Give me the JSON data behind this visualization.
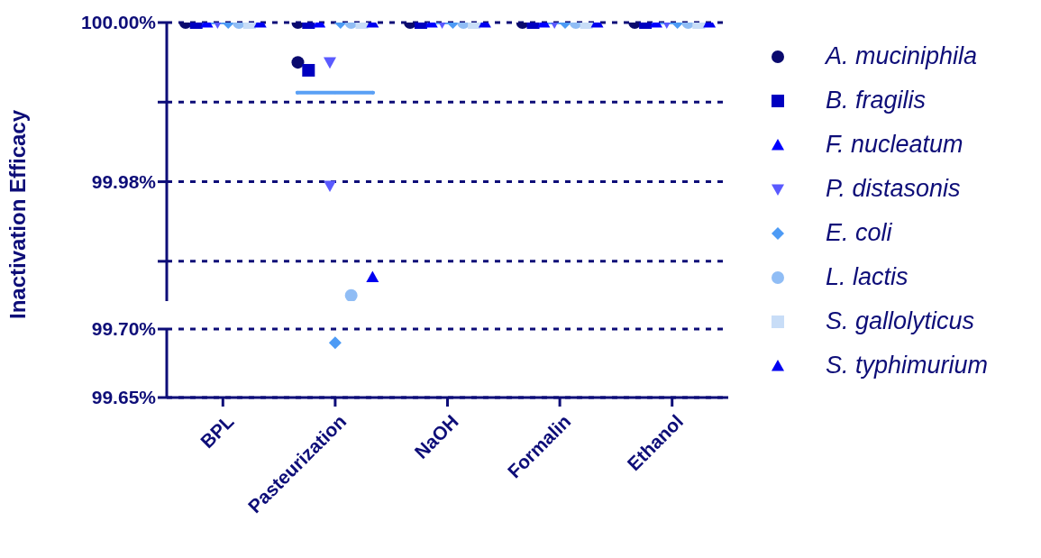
{
  "chart_data": [
    {
      "type": "scatter",
      "ylabel": "Inactivation Efficacy",
      "categories": [
        "BPL",
        "Pasteurization",
        "NaOH",
        "Formalin",
        "Ethanol"
      ],
      "ylim": [
        99.965,
        100
      ],
      "yticks": [
        {
          "value": 100,
          "label": "100.00%"
        },
        {
          "value": 99.99,
          "label": null
        },
        {
          "value": 99.98,
          "label": "99.98%"
        },
        {
          "value": 99.97,
          "label": null
        }
      ],
      "grid": "y",
      "legend": "right",
      "tick_labels": "y",
      "series": [
        {
          "type": "box",
          "color": "#5aa0f5",
          "boxes": [
            {
              "low": 100,
              "q1": 100,
              "median": 100,
              "q3": 100,
              "high": 100
            },
            {
              "low": 99.9912,
              "q1": 99.9912,
              "median": 99.9912,
              "q3": 99.9912,
              "high": 99.9912
            },
            {
              "low": 100,
              "q1": 100,
              "median": 100,
              "q3": 100,
              "high": 100
            },
            {
              "low": 100,
              "q1": 100,
              "median": 100,
              "q3": 100,
              "high": 100
            },
            {
              "low": 100,
              "q1": 100,
              "median": 100,
              "q3": 100,
              "high": 100
            }
          ]
        },
        {
          "name": "A. muciniphila",
          "color": "#0a0a6e",
          "marker": "circle",
          "x": [
            "BPL",
            "Pasteurization",
            "Pasteurization",
            "NaOH",
            "Formalin",
            "Ethanol"
          ],
          "values": [
            100,
            100,
            99.995,
            100,
            100,
            100
          ]
        },
        {
          "name": "B. fragilis",
          "color": "#0000c0",
          "marker": "square",
          "x": [
            "BPL",
            "Pasteurization",
            "Pasteurization",
            "NaOH",
            "Formalin",
            "Ethanol"
          ],
          "values": [
            100,
            100,
            99.994,
            100,
            100,
            100
          ]
        },
        {
          "name": "F. nucleatum",
          "color": "#0000ff",
          "marker": "triangle",
          "x": [
            "BPL",
            "Pasteurization",
            "NaOH",
            "Formalin",
            "Ethanol"
          ],
          "values": [
            100,
            100,
            100,
            100,
            100
          ]
        },
        {
          "name": "P. distasonis",
          "color": "#5a5aff",
          "marker": "triangle-down",
          "x": [
            "BPL",
            "Pasteurization",
            "Pasteurization",
            "NaOH",
            "Formalin",
            "Ethanol"
          ],
          "values": [
            100,
            99.995,
            99.9795,
            100,
            100,
            100
          ]
        },
        {
          "name": "E. coli",
          "color": "#4d9bf5",
          "marker": "diamond",
          "x": [
            "BPL",
            "Pasteurization",
            "NaOH",
            "Formalin",
            "Ethanol"
          ],
          "values": [
            100,
            100,
            100,
            100,
            100
          ]
        },
        {
          "name": "L. lactis",
          "color": "#90bdf5",
          "marker": "circle",
          "x": [
            "BPL",
            "Pasteurization",
            "Pasteurization",
            "NaOH",
            "Formalin",
            "Ethanol"
          ],
          "values": [
            100,
            100,
            99.9657,
            100,
            100,
            100
          ]
        },
        {
          "name": "S. gallolyticus",
          "color": "#c8ddf7",
          "marker": "square",
          "x": [
            "BPL",
            "Pasteurization",
            "NaOH",
            "Formalin",
            "Ethanol"
          ],
          "values": [
            100,
            100,
            100,
            100,
            100
          ]
        },
        {
          "name": "S. typhimurium",
          "color": "#0000f0",
          "marker": "triangle",
          "x": [
            "BPL",
            "Pasteurization",
            "Pasteurization",
            "NaOH",
            "Formalin",
            "Ethanol"
          ],
          "values": [
            100,
            100,
            99.968,
            100,
            100,
            100
          ]
        }
      ]
    },
    {
      "type": "scatter",
      "categories": [
        "BPL",
        "Pasteurization",
        "NaOH",
        "Formalin",
        "Ethanol"
      ],
      "ylim": [
        99.65,
        99.7
      ],
      "yticks": [
        {
          "value": 99.7,
          "label": "99.70%"
        },
        {
          "value": 99.65,
          "label": "99.65%"
        }
      ],
      "grid": "y",
      "series": [
        {
          "color": "#4d9bf5",
          "marker": "diamond",
          "x": [
            "Pasteurization"
          ],
          "values": [
            99.69
          ]
        }
      ]
    }
  ]
}
